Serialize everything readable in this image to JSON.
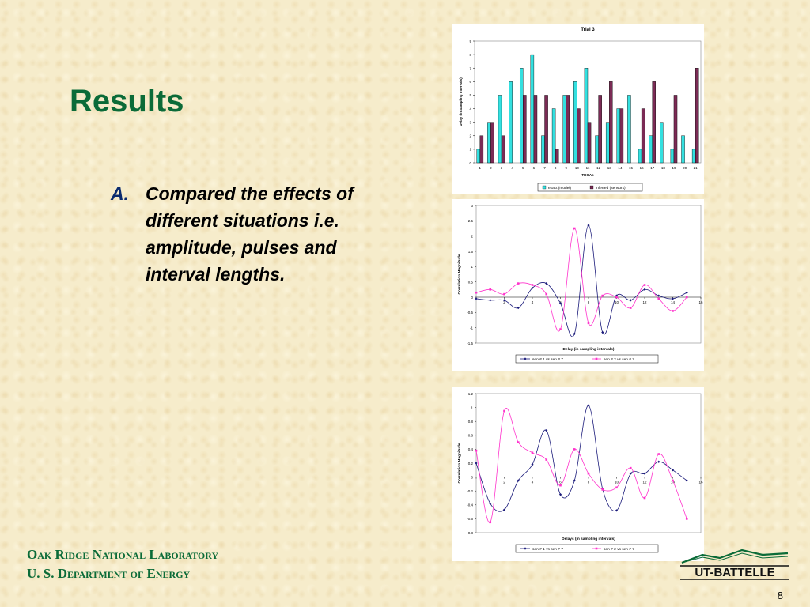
{
  "slide": {
    "title": "Results",
    "bullet_marker": "A.",
    "bullet_text": "Compared the effects of different situations i.e. amplitude, pulses and interval lengths.",
    "footer_line1": "Oak Ridge National Laboratory",
    "footer_line2": "U. S. Department of Energy",
    "logo_text": "UT-BATTELLE",
    "page_number": "8"
  },
  "colors": {
    "title": "#0b6b38",
    "series_cyan": "#33e0e0",
    "series_maroon": "#7b2b55",
    "series_navy": "#1a1a7a",
    "series_magenta": "#ff33cc"
  },
  "chart_data": [
    {
      "type": "bar",
      "title": "Trial 3",
      "xlabel": "TDOAs",
      "ylabel": "Delay (in Sampling Intervals)",
      "categories": [
        "1",
        "2",
        "3",
        "4",
        "5",
        "6",
        "7",
        "8",
        "9",
        "10",
        "11",
        "12",
        "13",
        "14",
        "15",
        "16",
        "17",
        "18",
        "19",
        "20",
        "21"
      ],
      "ylim": [
        0,
        9
      ],
      "yticks": [
        0,
        1,
        2,
        3,
        4,
        5,
        6,
        7,
        8,
        9
      ],
      "legend": "bottom",
      "grid": false,
      "series": [
        {
          "name": "exact (model)",
          "color": "#33e0e0",
          "values": [
            1,
            3,
            5,
            6,
            7,
            8,
            2,
            4,
            5,
            6,
            7,
            2,
            3,
            4,
            5,
            1,
            2,
            3,
            1,
            2,
            1
          ]
        },
        {
          "name": "inferred (sensors)",
          "color": "#7b2b55",
          "values": [
            2,
            3,
            2,
            0,
            5,
            5,
            5,
            1,
            5,
            4,
            3,
            5,
            6,
            4,
            0,
            4,
            6,
            0,
            5,
            0,
            7
          ]
        }
      ]
    },
    {
      "type": "line",
      "title": "",
      "xlabel": "Delay (in sampling intervals)",
      "ylabel": "Correlation Magnitude",
      "xlim": [
        0,
        16
      ],
      "ylim": [
        -1.5,
        3
      ],
      "xticks": [
        0,
        2,
        4,
        6,
        8,
        10,
        12,
        14,
        16
      ],
      "xtick_labels": [
        "",
        "2",
        "4",
        "6",
        "8",
        "10",
        "12",
        "14",
        "16"
      ],
      "yticks": [
        -1.5,
        -1,
        -0.5,
        0,
        0.5,
        1,
        1.5,
        2,
        2.5,
        3
      ],
      "ytick_labels": [
        "-1.5",
        "-1",
        "-0.5",
        "0",
        "0.5",
        "1",
        "1.5",
        "2",
        "2.5",
        "3"
      ],
      "legend": "bottom",
      "grid": false,
      "series": [
        {
          "name": "sen # 1  vs  sen # 7",
          "color": "#1a1a7a",
          "marker": "diamond",
          "x": [
            0,
            1,
            2,
            3,
            4,
            5,
            6,
            7,
            8,
            9,
            10,
            11,
            12,
            13,
            14,
            15
          ],
          "y": [
            -0.05,
            -0.1,
            -0.1,
            -0.35,
            0.3,
            0.45,
            -0.2,
            -1.2,
            2.35,
            -1.15,
            0.05,
            -0.1,
            0.25,
            0.05,
            -0.05,
            0.15
          ]
        },
        {
          "name": "sen # 2  vs  sen # 7",
          "color": "#ff33cc",
          "marker": "square",
          "x": [
            0,
            1,
            2,
            3,
            4,
            5,
            6,
            7,
            8,
            9,
            10,
            11,
            12,
            13,
            14,
            15
          ],
          "y": [
            0.15,
            0.25,
            0.1,
            0.45,
            0.4,
            0.1,
            -1.05,
            2.25,
            -0.85,
            0.05,
            0.0,
            -0.35,
            0.4,
            -0.05,
            -0.45,
            0
          ]
        }
      ]
    },
    {
      "type": "line",
      "title": "",
      "xlabel": "Delays (in sampling intervals)",
      "ylabel": "Correlation Magnitude",
      "xlim": [
        0,
        16
      ],
      "ylim": [
        -0.8,
        1.2
      ],
      "xticks": [
        0,
        2,
        4,
        6,
        8,
        10,
        12,
        14,
        16
      ],
      "xtick_labels": [
        "",
        "2",
        "4",
        "6",
        "8",
        "10",
        "12",
        "14",
        "16"
      ],
      "yticks": [
        -0.8,
        -0.6,
        -0.4,
        -0.2,
        0,
        0.2,
        0.4,
        0.6,
        0.8,
        1,
        1.2
      ],
      "ytick_labels": [
        "-0.8",
        "-0.6",
        "-0.4",
        "-0.2",
        "0",
        "0.2",
        "0.4",
        "0.6",
        "0.8",
        "1",
        "1.2"
      ],
      "legend": "bottom",
      "grid": false,
      "series": [
        {
          "name": "sen # 1  vs  sen # 7",
          "color": "#1a1a7a",
          "marker": "diamond",
          "x": [
            0,
            1,
            2,
            3,
            4,
            5,
            6,
            7,
            8,
            9,
            10,
            11,
            12,
            13,
            14,
            15
          ],
          "y": [
            0.2,
            -0.38,
            -0.47,
            -0.05,
            0.18,
            0.67,
            -0.25,
            -0.05,
            1.03,
            -0.17,
            -0.48,
            0.05,
            0.05,
            0.22,
            0.1,
            -0.05
          ]
        },
        {
          "name": "sen # 2  vs  sen # 7",
          "color": "#ff33cc",
          "marker": "square",
          "x": [
            0,
            1,
            2,
            3,
            4,
            5,
            6,
            7,
            8,
            9,
            10,
            11,
            12,
            13,
            14,
            15
          ],
          "y": [
            0.38,
            -0.65,
            0.95,
            0.5,
            0.35,
            0.25,
            -0.12,
            0.4,
            0.05,
            -0.18,
            -0.15,
            0.13,
            -0.3,
            0.33,
            -0.05,
            -0.6
          ]
        }
      ]
    }
  ]
}
